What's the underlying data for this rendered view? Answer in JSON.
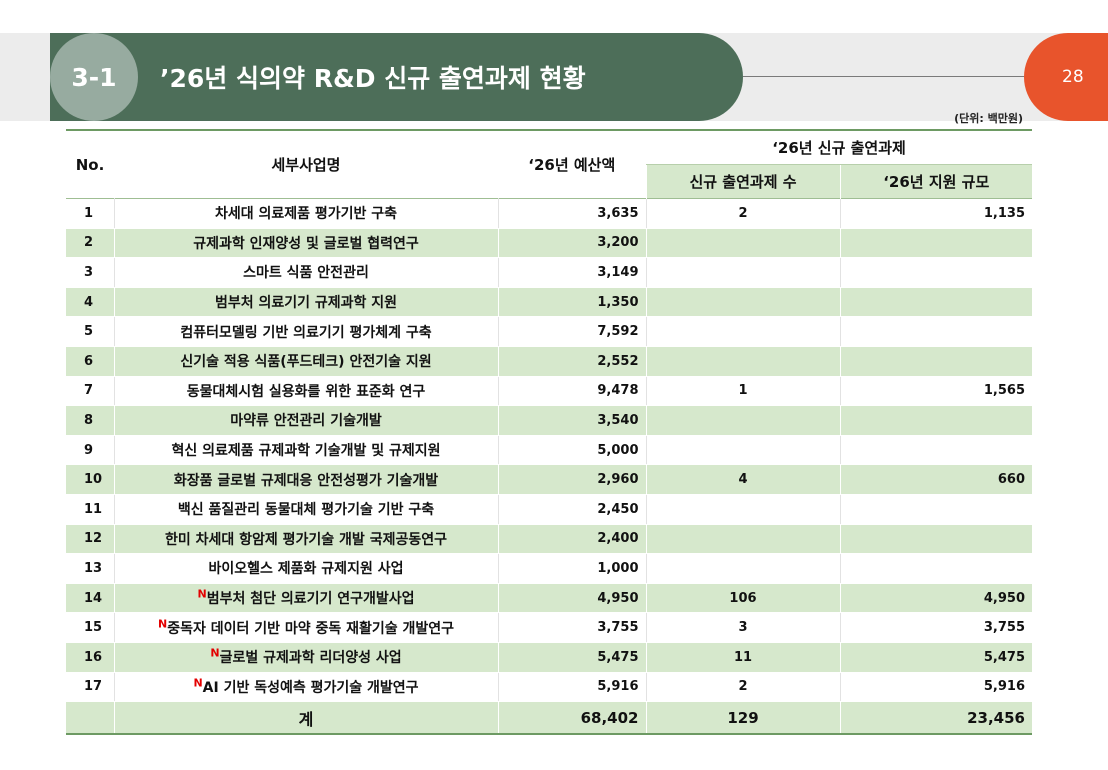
{
  "header": {
    "section_number": "3-1",
    "title": "’26년 식의약 R&D 신규 출연과제 현황",
    "page_number": "28",
    "unit_note": "(단위: 백만원)"
  },
  "table": {
    "headers": {
      "no": "No.",
      "name": "세부사업명",
      "budget": "‘26년 예산액",
      "group": "‘26년 신규 출연과제",
      "count": "신규 출연과제 수",
      "scale": "‘26년 지원 규모"
    },
    "new_mark": "N",
    "rows": [
      {
        "no": "1",
        "name": "차세대 의료제품 평가기반 구축",
        "budget": "3,635",
        "count": "2",
        "scale": "1,135"
      },
      {
        "no": "2",
        "name": "규제과학 인재양성 및 글로벌 협력연구",
        "budget": "3,200",
        "count": "",
        "scale": ""
      },
      {
        "no": "3",
        "name": "스마트 식품 안전관리",
        "budget": "3,149",
        "count": "",
        "scale": ""
      },
      {
        "no": "4",
        "name": "범부처 의료기기 규제과학 지원",
        "budget": "1,350",
        "count": "",
        "scale": ""
      },
      {
        "no": "5",
        "name": "컴퓨터모델링 기반 의료기기 평가체계 구축",
        "budget": "7,592",
        "count": "",
        "scale": ""
      },
      {
        "no": "6",
        "name": "신기술 적용 식품(푸드테크) 안전기술 지원",
        "budget": "2,552",
        "count": "",
        "scale": ""
      },
      {
        "no": "7",
        "name": "동물대체시험 실용화를 위한 표준화 연구",
        "budget": "9,478",
        "count": "1",
        "scale": "1,565"
      },
      {
        "no": "8",
        "name": "마약류 안전관리 기술개발",
        "budget": "3,540",
        "count": "",
        "scale": ""
      },
      {
        "no": "9",
        "name": "혁신 의료제품 규제과학 기술개발 및 규제지원",
        "budget": "5,000",
        "count": "",
        "scale": ""
      },
      {
        "no": "10",
        "name": "화장품 글로벌 규제대응 안전성평가 기술개발",
        "budget": "2,960",
        "count": "4",
        "scale": "660"
      },
      {
        "no": "11",
        "name": "백신 품질관리 동물대체 평가기술 기반 구축",
        "budget": "2,450",
        "count": "",
        "scale": ""
      },
      {
        "no": "12",
        "name": "한미 차세대 항암제 평가기술 개발 국제공동연구",
        "budget": "2,400",
        "count": "",
        "scale": ""
      },
      {
        "no": "13",
        "name": "바이오헬스 제품화 규제지원 사업",
        "budget": "1,000",
        "count": "",
        "scale": ""
      },
      {
        "no": "14",
        "name": "범부처 첨단 의료기기 연구개발사업",
        "budget": "4,950",
        "count": "106",
        "scale": "4,950",
        "is_new": true
      },
      {
        "no": "15",
        "name": "중독자 데이터 기반 마약 중독 재활기술 개발연구",
        "budget": "3,755",
        "count": "3",
        "scale": "3,755",
        "is_new": true
      },
      {
        "no": "16",
        "name": "글로벌 규제과학 리더양성 사업",
        "budget": "5,475",
        "count": "11",
        "scale": "5,475",
        "is_new": true
      },
      {
        "no": "17",
        "name": "AI 기반 독성예측 평가기술 개발연구",
        "budget": "5,916",
        "count": "2",
        "scale": "5,916",
        "is_new": true
      }
    ],
    "total": {
      "label": "계",
      "budget": "68,402",
      "count": "129",
      "scale": "23,456"
    }
  },
  "colors": {
    "title_bar": "#4d6e59",
    "section_circle": "#97aba0",
    "page_tab": "#e8542c",
    "row_band": "#d6e8cc",
    "new_mark": "#e30000"
  }
}
